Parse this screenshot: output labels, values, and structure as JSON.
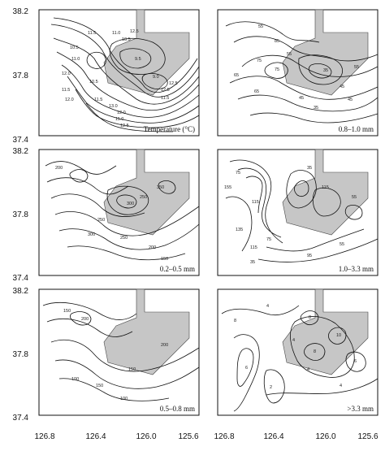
{
  "y_axis": {
    "ticks": [
      "38.2",
      "37.8",
      "37.4"
    ]
  },
  "x_axis": {
    "ticks": [
      "126.8",
      "126.4",
      "126.0",
      "125.6"
    ]
  },
  "panels": [
    {
      "label": "Temperature (°C)",
      "contour_labels": [
        "9.0",
        "11.0",
        "10.5",
        "12.5",
        "11.5",
        "10.5",
        "11.0",
        "12.0",
        "11.5",
        "12.0",
        "9.5",
        "10.5",
        "11.5",
        "12.5",
        "12.5",
        "11.5",
        "13.0",
        "12.0",
        "11.0",
        "12.5"
      ]
    },
    {
      "label": "0.8–1.0 mm",
      "contour_labels": [
        "55",
        "85",
        "75",
        "65",
        "55",
        "65",
        "45",
        "35",
        "45",
        "75",
        "35",
        "55",
        "45"
      ]
    },
    {
      "label": "0.2–0.5 mm",
      "contour_labels": [
        "200",
        "350",
        "250",
        "300",
        "250",
        "250",
        "200",
        "150",
        "300"
      ]
    },
    {
      "label": "1.0–3.3 mm",
      "contour_labels": [
        "75",
        "155",
        "115",
        "115",
        "35",
        "55",
        "135",
        "75",
        "115",
        "35",
        "95",
        "55"
      ]
    },
    {
      "label": "0.5–0.8 mm",
      "contour_labels": [
        "150",
        "200",
        "150",
        "100",
        "150",
        "100",
        "200"
      ]
    },
    {
      "label": ">3.3 mm",
      "contour_labels": [
        "6",
        "4",
        "8",
        "4",
        "8",
        "10",
        "4",
        "2",
        "6",
        "4",
        "8"
      ]
    }
  ]
}
